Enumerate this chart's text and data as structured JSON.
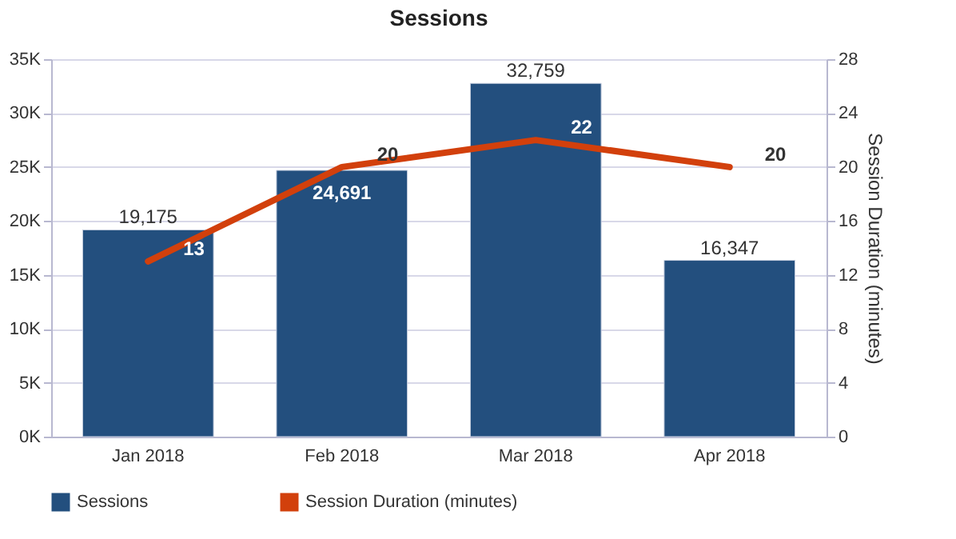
{
  "chart_data": {
    "type": "bar",
    "title": "Sessions",
    "y2label": "Session Duration (minutes)",
    "categories": [
      "Jan 2018",
      "Feb 2018",
      "Mar 2018",
      "Apr 2018"
    ],
    "series": [
      {
        "name": "Sessions",
        "color": "#234f7e",
        "values": [
          19175,
          24691,
          32759,
          16347
        ],
        "value_labels": [
          "19,175",
          "24,691",
          "32,759",
          "16,347"
        ]
      },
      {
        "name": "Session Duration (minutes)",
        "type": "line",
        "axis": "y2",
        "color": "#d2400c",
        "values": [
          13,
          20,
          22,
          20
        ]
      }
    ],
    "ylim": [
      0,
      35000
    ],
    "yticks": [
      {
        "value": 0,
        "label": "0K"
      },
      {
        "value": 5000,
        "label": "5K"
      },
      {
        "value": 10000,
        "label": "10K"
      },
      {
        "value": 15000,
        "label": "15K"
      },
      {
        "value": 20000,
        "label": "20K"
      },
      {
        "value": 25000,
        "label": "25K"
      },
      {
        "value": 30000,
        "label": "30K"
      },
      {
        "value": 35000,
        "label": "35K"
      }
    ],
    "y2lim": [
      0,
      28
    ],
    "y2ticks": [
      0,
      4,
      8,
      12,
      16,
      20,
      24,
      28
    ],
    "grid": "y",
    "legend": "bottom",
    "data_labels": true,
    "marker": "none",
    "line_style": "solid"
  }
}
